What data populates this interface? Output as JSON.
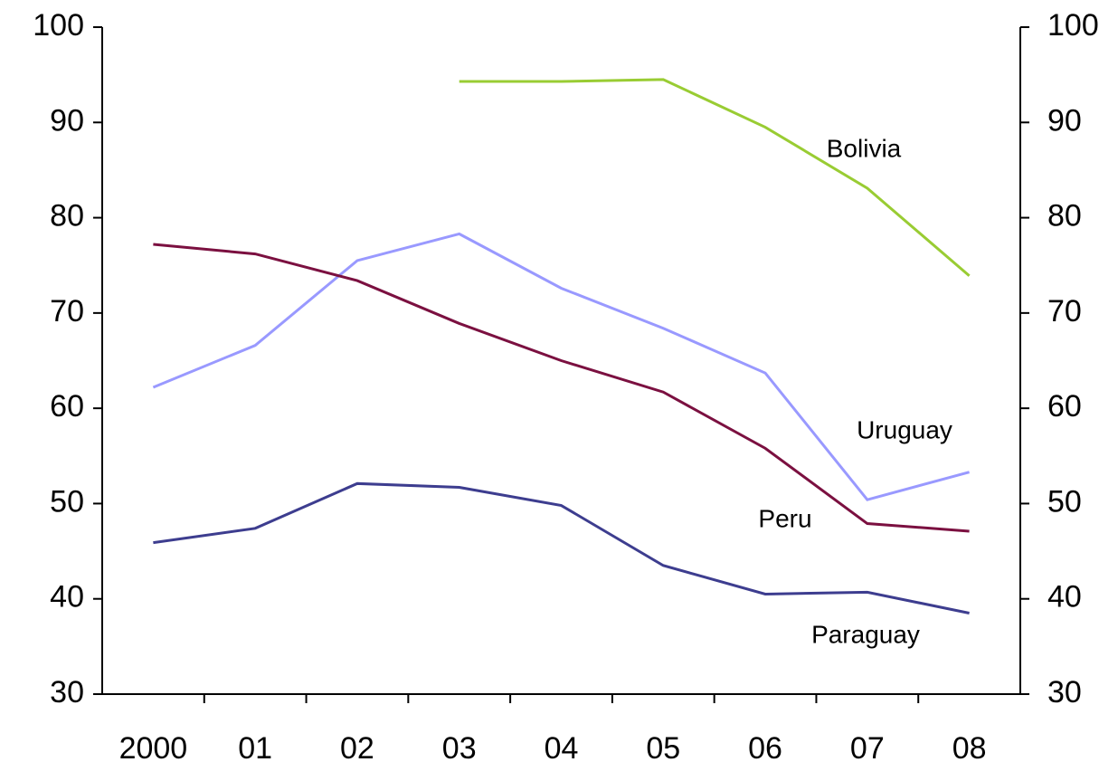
{
  "chart_data": {
    "type": "line",
    "categories": [
      "2000",
      "01",
      "02",
      "03",
      "04",
      "05",
      "06",
      "07",
      "08"
    ],
    "series": [
      {
        "name": "Bolivia",
        "color": "#99cc33",
        "values": [
          null,
          null,
          null,
          94.3,
          94.3,
          94.5,
          89.5,
          83.1,
          73.9
        ]
      },
      {
        "name": "Uruguay",
        "color": "#9999ff",
        "values": [
          62.2,
          66.6,
          75.5,
          78.3,
          72.6,
          68.4,
          63.7,
          50.4,
          53.3
        ]
      },
      {
        "name": "Peru",
        "color": "#7b1040",
        "values": [
          77.2,
          76.2,
          73.4,
          68.9,
          65.0,
          61.7,
          55.8,
          47.9,
          47.1
        ]
      },
      {
        "name": "Paraguay",
        "color": "#3d3d8f",
        "values": [
          45.9,
          47.4,
          52.1,
          51.7,
          49.8,
          43.5,
          40.5,
          40.7,
          38.5
        ]
      }
    ],
    "ylim": [
      30,
      100
    ],
    "yticks": [
      30,
      40,
      50,
      60,
      70,
      80,
      90,
      100
    ],
    "y2lim": [
      30,
      100
    ],
    "y2ticks": [
      30,
      40,
      50,
      60,
      70,
      80,
      90,
      100
    ]
  }
}
